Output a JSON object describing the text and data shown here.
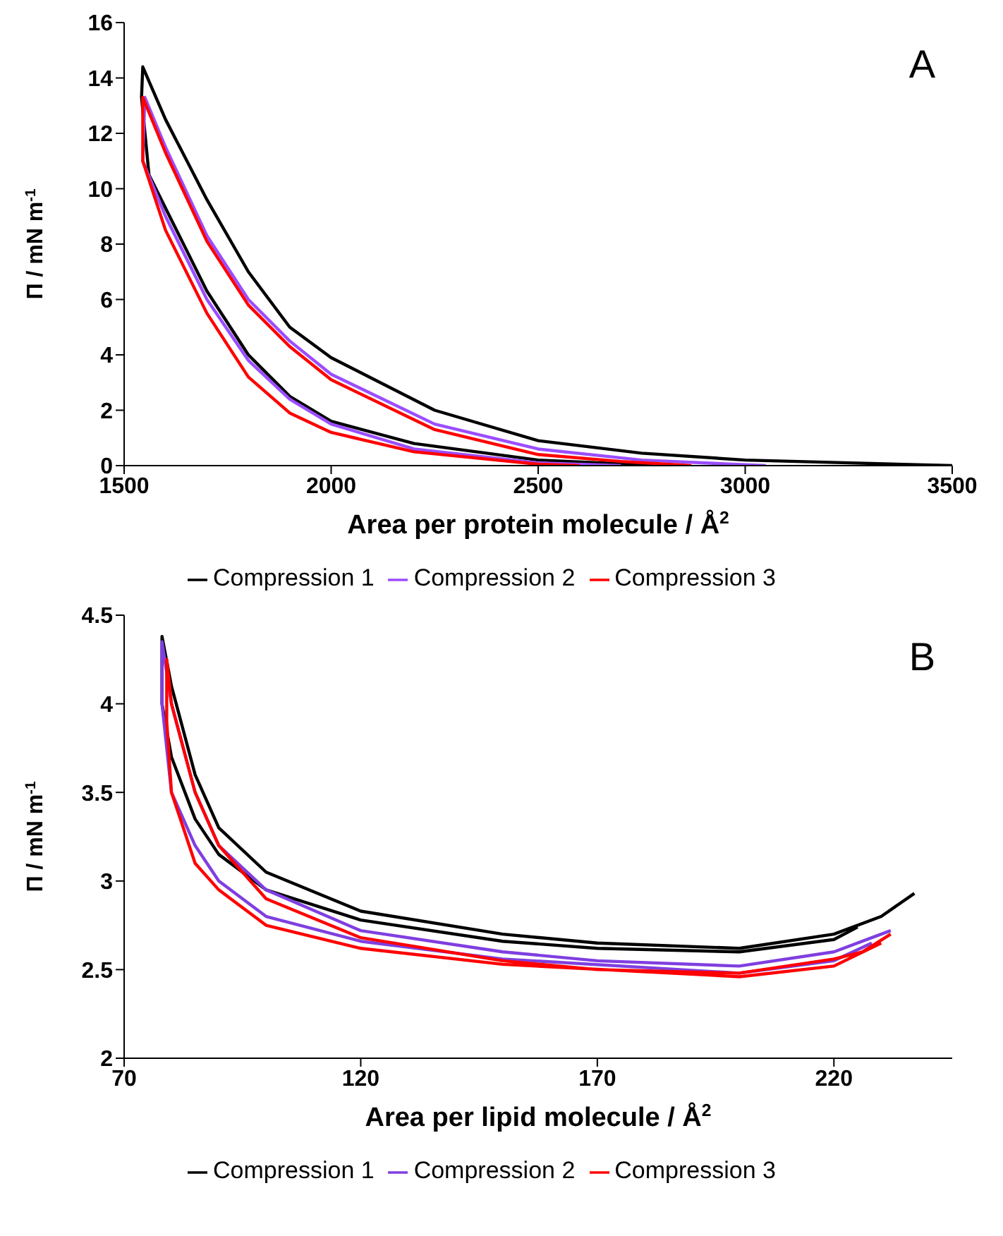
{
  "chart_data": [
    {
      "type": "line",
      "xlabel": "Area per protein molecule / Å$^{2}$",
      "ylabel": "Π / mN m$^{-1}$",
      "annotations": [
        "A"
      ],
      "xlim": [
        1500,
        3500
      ],
      "xticks": [
        1500,
        2000,
        2500,
        3000,
        3500
      ],
      "ylim": [
        0,
        16
      ],
      "yticks": [
        0,
        2,
        4,
        6,
        8,
        10,
        12,
        14,
        16
      ],
      "grid": false,
      "legend": "bottom",
      "series": [
        {
          "name": "Compression 1",
          "color": "#000000",
          "x": [
            3500,
            3000,
            2750,
            2500,
            2250,
            2000,
            1900,
            1800,
            1700,
            1600,
            1545,
            1542,
            1560,
            1600,
            1700,
            1800,
            1900,
            2000,
            2200,
            2500,
            2800
          ],
          "values": [
            0,
            0.2,
            0.45,
            0.9,
            2,
            3.9,
            5,
            7,
            9.6,
            12.5,
            14.4,
            13.3,
            10.5,
            9.3,
            6.3,
            4,
            2.5,
            1.6,
            0.8,
            0.2,
            0
          ]
        },
        {
          "name": "Compression 2",
          "color": "#9b4dff",
          "x": [
            3050,
            2750,
            2500,
            2250,
            2000,
            1900,
            1800,
            1700,
            1600,
            1550,
            1545,
            1600,
            1700,
            1800,
            1900,
            2000,
            2200,
            2500,
            2700
          ],
          "values": [
            0,
            0.2,
            0.6,
            1.5,
            3.3,
            4.5,
            6,
            8.3,
            11.5,
            13.3,
            11,
            9,
            6,
            3.8,
            2.4,
            1.5,
            0.6,
            0.1,
            0
          ]
        },
        {
          "name": "Compression 3",
          "color": "#ff0000",
          "x": [
            2870,
            2700,
            2500,
            2250,
            2000,
            1900,
            1800,
            1700,
            1600,
            1545,
            1545,
            1600,
            1700,
            1800,
            1900,
            2000,
            2200,
            2500,
            2600
          ],
          "values": [
            0,
            0.15,
            0.4,
            1.3,
            3.1,
            4.3,
            5.8,
            8.1,
            11.3,
            13.3,
            11,
            8.5,
            5.5,
            3.2,
            1.9,
            1.2,
            0.5,
            0.05,
            0
          ]
        }
      ]
    },
    {
      "type": "line",
      "xlabel": "Area per lipid molecule / Å$^{2}$",
      "ylabel": "Π / mN m$^{-1}$",
      "annotations": [
        "B"
      ],
      "xlim": [
        70,
        245
      ],
      "xticks": [
        70,
        120,
        170,
        220
      ],
      "ylim": [
        2,
        4.5
      ],
      "yticks": [
        2,
        2.5,
        3,
        3.5,
        4,
        4.5
      ],
      "grid": false,
      "legend": "bottom",
      "series": [
        {
          "name": "Compression 1",
          "color": "#000000",
          "x": [
            237,
            230,
            220,
            200,
            170,
            150,
            120,
            100,
            90,
            85,
            80,
            78,
            78,
            80,
            85,
            90,
            100,
            120,
            150,
            170,
            200,
            220,
            225
          ],
          "values": [
            2.93,
            2.8,
            2.7,
            2.62,
            2.65,
            2.7,
            2.83,
            3.05,
            3.3,
            3.6,
            4.1,
            4.38,
            4,
            3.7,
            3.35,
            3.15,
            2.95,
            2.78,
            2.66,
            2.62,
            2.6,
            2.67,
            2.74
          ]
        },
        {
          "name": "Compression 2",
          "color": "#7f3fe0",
          "x": [
            232,
            228,
            220,
            200,
            170,
            150,
            120,
            100,
            90,
            85,
            80,
            78,
            78,
            80,
            85,
            90,
            100,
            120,
            150,
            200,
            220,
            228
          ],
          "values": [
            2.72,
            2.68,
            2.6,
            2.52,
            2.55,
            2.6,
            2.72,
            2.95,
            3.2,
            3.5,
            4,
            4.35,
            4,
            3.5,
            3.2,
            3,
            2.8,
            2.66,
            2.56,
            2.48,
            2.55,
            2.65
          ]
        },
        {
          "name": "Compression 3",
          "color": "#ff0000",
          "x": [
            232,
            226,
            220,
            200,
            170,
            150,
            120,
            100,
            90,
            85,
            80,
            79,
            79,
            80,
            85,
            90,
            100,
            120,
            150,
            200,
            220,
            230
          ],
          "values": [
            2.7,
            2.6,
            2.56,
            2.48,
            2.5,
            2.55,
            2.68,
            2.9,
            3.2,
            3.5,
            4,
            4.25,
            3.9,
            3.5,
            3.1,
            2.95,
            2.75,
            2.62,
            2.53,
            2.46,
            2.52,
            2.65
          ]
        }
      ]
    }
  ]
}
